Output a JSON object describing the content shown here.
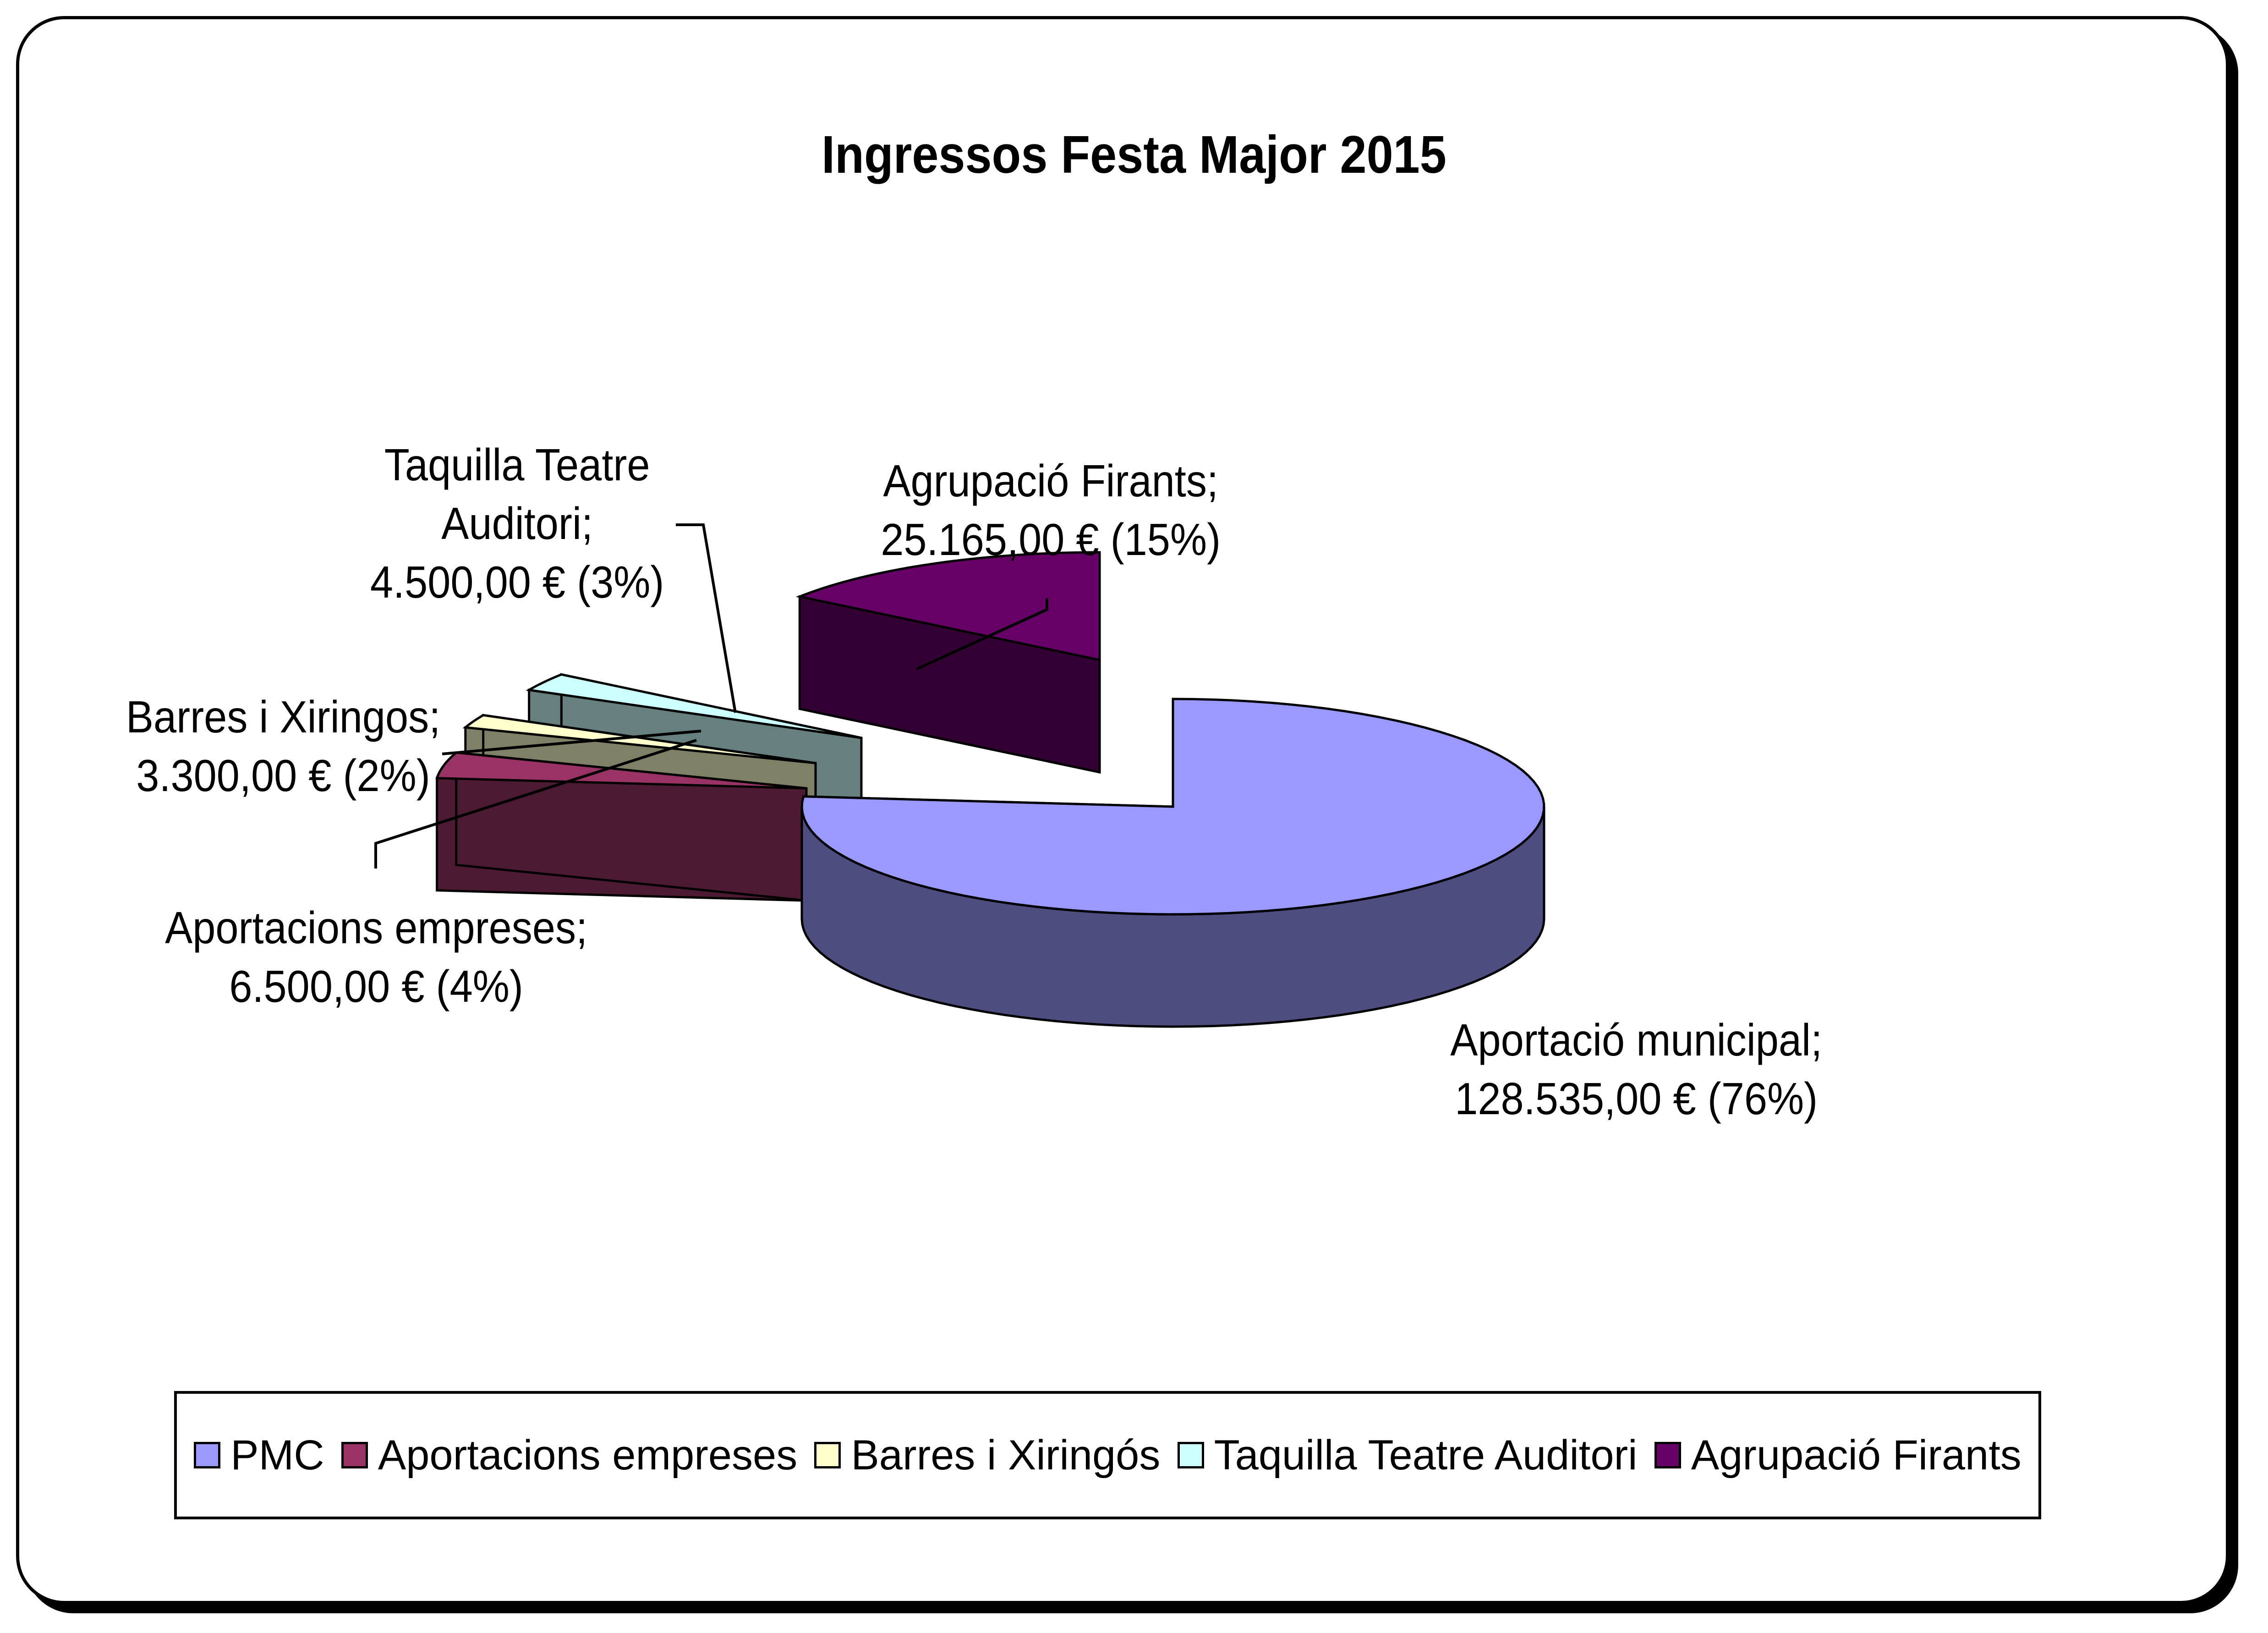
{
  "chart_data": {
    "type": "pie",
    "title": "Ingressos Festa Major 2015",
    "slices": [
      {
        "name": "PMC",
        "label_lines": [
          "Aportació municipal;",
          "128.535,00 € (76%)"
        ],
        "value": 128535,
        "percent": 76,
        "color": "#9999ff",
        "side_color": "#4d4d80"
      },
      {
        "name": "Aportacions empreses",
        "label_lines": [
          "Aportacions empreses;",
          "6.500,00 € (4%)"
        ],
        "value": 6500,
        "percent": 4,
        "color": "#993366",
        "side_color": "#4d1a33"
      },
      {
        "name": "Barres i Xiringós",
        "label_lines": [
          "Barres i Xiringos;",
          "3.300,00 €  (2%)"
        ],
        "value": 3300,
        "percent": 2,
        "color": "#ffffcc",
        "side_color": "#808066"
      },
      {
        "name": "Taquilla Teatre Auditori",
        "label_lines": [
          "Taquilla Teatre",
          "Auditori;",
          "4.500,00 €  (3%)"
        ],
        "value": 4500,
        "percent": 3,
        "color": "#ccffff",
        "side_color": "#668080"
      },
      {
        "name": "Agrupació Firants",
        "label_lines": [
          "Agrupació Firants;",
          "25.165,00 € (15%)"
        ],
        "value": 25165,
        "percent": 15,
        "color": "#660066",
        "side_color": "#330033"
      }
    ],
    "legend_position": "bottom"
  }
}
